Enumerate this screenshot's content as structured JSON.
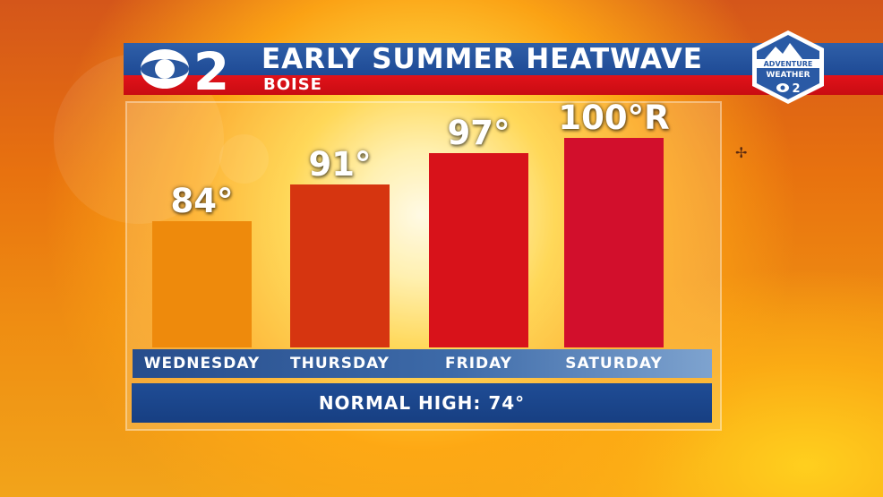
{
  "header": {
    "station": "2",
    "title": "EARLY SUMMER HEATWAVE",
    "location": "BOISE"
  },
  "badge": {
    "line1": "ADVENTURE",
    "line2": "WEATHER",
    "mark": "2"
  },
  "chart_data": {
    "type": "bar",
    "categories": [
      "WEDNESDAY",
      "THURSDAY",
      "FRIDAY",
      "SATURDAY"
    ],
    "values": [
      84,
      91,
      97,
      100
    ],
    "value_labels": [
      "84°",
      "91°",
      "97°",
      "100°R"
    ],
    "bar_colors": [
      "#ee8a0c",
      "#d63510",
      "#d8121a",
      "#d20f2c"
    ],
    "ylim": [
      60,
      102
    ],
    "normal_high": "NORMAL HIGH: 74°"
  },
  "colors": {
    "header_blue": "#2a579f",
    "header_red": "#e2121a",
    "normal_band_blue": "#1f4c95"
  }
}
